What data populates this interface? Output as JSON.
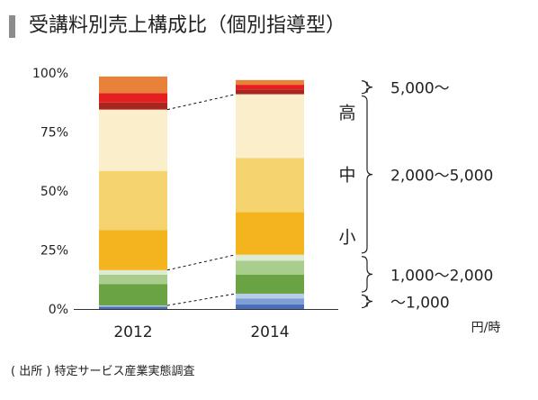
{
  "title": "受講料別売上構成比（個別指導型）",
  "source": "( 出所 ) 特定サービス産業実態調査",
  "colors": {
    "title_bar": "#8c8c8c",
    "axis": "#333333"
  },
  "chart_data": {
    "type": "bar",
    "stacked": true,
    "categories": [
      "2012",
      "2014"
    ],
    "ylim": [
      0,
      100
    ],
    "yticks": [
      "0%",
      "25%",
      "50%",
      "75%",
      "100%"
    ],
    "unit_label": "円/時",
    "series": [
      {
        "color": "#4a6fb8",
        "values": [
          1,
          2
        ]
      },
      {
        "color": "#7e9ed6",
        "values": [
          0,
          2.5
        ]
      },
      {
        "color": "#b7cde8",
        "values": [
          0.5,
          2
        ]
      },
      {
        "color": "#6aa344",
        "values": [
          9,
          8
        ]
      },
      {
        "color": "#a9cd8c",
        "values": [
          4,
          6
        ]
      },
      {
        "color": "#dcebd2",
        "values": [
          2,
          2.5
        ]
      },
      {
        "color": "#f3b41d",
        "values": [
          17,
          18
        ]
      },
      {
        "color": "#f5d36f",
        "values": [
          25,
          23
        ]
      },
      {
        "color": "#fbeecb",
        "values": [
          26,
          27
        ]
      },
      {
        "color": "#a8261f",
        "values": [
          3,
          2
        ]
      },
      {
        "color": "#e41f1f",
        "values": [
          4,
          2
        ]
      },
      {
        "color": "#e8813a",
        "values": [
          7,
          2
        ]
      }
    ],
    "groups": [
      {
        "label": "5,000～",
        "from_series": 9,
        "to_series": 11
      },
      {
        "label": "2,000～5,000",
        "from_series": 6,
        "to_series": 8,
        "sub_labels": [
          "高",
          "中",
          "小"
        ]
      },
      {
        "label": "1,000～2,000",
        "from_series": 3,
        "to_series": 5
      },
      {
        "label": "～1,000",
        "from_series": 0,
        "to_series": 2
      }
    ]
  }
}
